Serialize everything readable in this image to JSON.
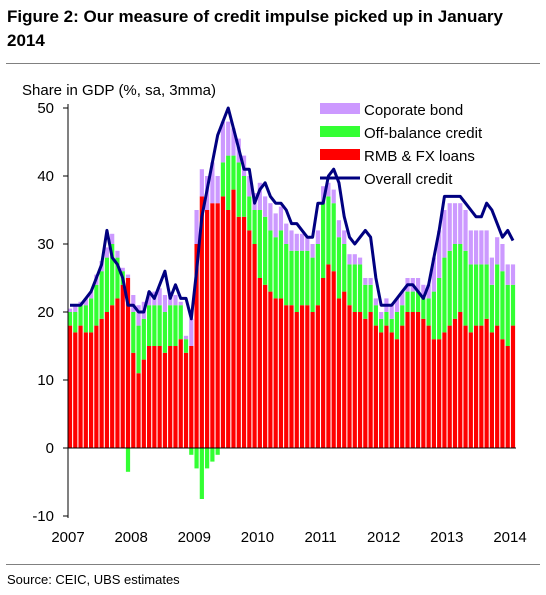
{
  "figure": {
    "title": "Figure 2: Our measure of credit impulse picked up in January 2014",
    "source": "Source: CEIC, UBS estimates"
  },
  "colors": {
    "corporate_bond": "#cc99ff",
    "off_balance": "#33ff33",
    "rmb_fx": "#ff0000",
    "overall": "#000080"
  },
  "chart_data": {
    "type": "bar",
    "stacked": true,
    "ylabel": "Share in GDP (%, sa, 3mma)",
    "ylim": [
      -10,
      50
    ],
    "yticks": [
      -10,
      0,
      10,
      20,
      30,
      40,
      50
    ],
    "xticks": [
      "2007",
      "2008",
      "2009",
      "2010",
      "2011",
      "2012",
      "2013",
      "2014"
    ],
    "legend_position": "top-right",
    "x": [
      "2007-01",
      "2007-02",
      "2007-03",
      "2007-04",
      "2007-05",
      "2007-06",
      "2007-07",
      "2007-08",
      "2007-09",
      "2007-10",
      "2007-11",
      "2007-12",
      "2008-01",
      "2008-02",
      "2008-03",
      "2008-04",
      "2008-05",
      "2008-06",
      "2008-07",
      "2008-08",
      "2008-09",
      "2008-10",
      "2008-11",
      "2008-12",
      "2009-01",
      "2009-02",
      "2009-03",
      "2009-04",
      "2009-05",
      "2009-06",
      "2009-07",
      "2009-08",
      "2009-09",
      "2009-10",
      "2009-11",
      "2009-12",
      "2010-01",
      "2010-02",
      "2010-03",
      "2010-04",
      "2010-05",
      "2010-06",
      "2010-07",
      "2010-08",
      "2010-09",
      "2010-10",
      "2010-11",
      "2010-12",
      "2011-01",
      "2011-02",
      "2011-03",
      "2011-04",
      "2011-05",
      "2011-06",
      "2011-07",
      "2011-08",
      "2011-09",
      "2011-10",
      "2011-11",
      "2011-12",
      "2012-01",
      "2012-02",
      "2012-03",
      "2012-04",
      "2012-05",
      "2012-06",
      "2012-07",
      "2012-08",
      "2012-09",
      "2012-10",
      "2012-11",
      "2012-12",
      "2013-01",
      "2013-02",
      "2013-03",
      "2013-04",
      "2013-05",
      "2013-06",
      "2013-07",
      "2013-08",
      "2013-09",
      "2013-10",
      "2013-11",
      "2013-12",
      "2014-01"
    ],
    "series": [
      {
        "name": "RMB & FX loans",
        "values": [
          18,
          17,
          18,
          17,
          17,
          18,
          19,
          20,
          21,
          22,
          24,
          25,
          14,
          11,
          13,
          15,
          15,
          15,
          14,
          15,
          15,
          16,
          14,
          15,
          30,
          37,
          35,
          36,
          36,
          37,
          35,
          38,
          34,
          34,
          32,
          30,
          25,
          24,
          23,
          22,
          22,
          21,
          21,
          20,
          21,
          21,
          20,
          21,
          25,
          27,
          26,
          22,
          23,
          21,
          20,
          20,
          19,
          20,
          18,
          17,
          18,
          17,
          16,
          18,
          20,
          20,
          20,
          19,
          18,
          16,
          16,
          17,
          18,
          19,
          20,
          18,
          17,
          18,
          18,
          19,
          17,
          18,
          16,
          15,
          18
        ]
      },
      {
        "name": "Off-balance credit",
        "values": [
          2,
          3,
          3,
          4,
          5,
          6,
          7,
          8,
          9,
          6,
          2,
          -3.5,
          6,
          7,
          6,
          6,
          6,
          6,
          6,
          6,
          6,
          5,
          2,
          -1,
          -3,
          -7.5,
          -3,
          -2,
          -1,
          5,
          8,
          5,
          8,
          6,
          5,
          5,
          10,
          10,
          9,
          9,
          10,
          9,
          8,
          9,
          8,
          8,
          8,
          9,
          11,
          10,
          10,
          9,
          7,
          6,
          7,
          7,
          5,
          4,
          3,
          2,
          2,
          2,
          4,
          3,
          3,
          3,
          3,
          3,
          4,
          7,
          9,
          11,
          11,
          11,
          10,
          11,
          10,
          9,
          9,
          8,
          7,
          9,
          10,
          9,
          6
        ]
      },
      {
        "name": "Coporate bond",
        "values": [
          0.5,
          1,
          0.5,
          1,
          1,
          1.5,
          1.5,
          1.5,
          1.5,
          1,
          0.5,
          0.5,
          2.5,
          3,
          2.5,
          2,
          2,
          2.5,
          2.5,
          2,
          1.5,
          0.5,
          0.5,
          4,
          5,
          4,
          5,
          6,
          4,
          6,
          5,
          4,
          3.5,
          3,
          3,
          2.5,
          4,
          3,
          4,
          3.5,
          3.5,
          3,
          3,
          2.5,
          2.5,
          2,
          2,
          2,
          2.5,
          2,
          2,
          2.5,
          2,
          1.5,
          1.5,
          1,
          1,
          1,
          1,
          1,
          2,
          2,
          2,
          2,
          2,
          2,
          2,
          2,
          2,
          5,
          7,
          7,
          7,
          6,
          6,
          6,
          5,
          5,
          5,
          5,
          4,
          4,
          4,
          3,
          3
        ]
      },
      {
        "name": "Overall credit",
        "type": "line",
        "values": [
          21,
          21,
          21,
          22,
          23,
          25,
          27,
          32,
          28,
          27,
          25,
          21,
          21,
          20,
          20,
          23,
          22,
          24,
          26,
          22,
          24,
          22,
          22,
          19,
          26,
          34,
          38,
          42,
          46,
          48,
          50,
          47,
          44,
          41,
          41,
          36,
          38,
          39,
          37,
          36,
          36,
          35,
          33,
          33,
          32,
          31,
          31,
          36,
          36,
          40,
          41,
          39,
          34,
          31,
          30,
          31,
          32,
          31,
          25,
          21,
          21,
          21,
          22,
          23,
          24,
          24,
          23,
          22,
          24,
          28,
          32,
          37,
          37,
          37,
          37,
          36,
          35,
          34,
          34,
          36,
          35,
          33,
          31,
          32,
          30.5
        ]
      }
    ]
  }
}
